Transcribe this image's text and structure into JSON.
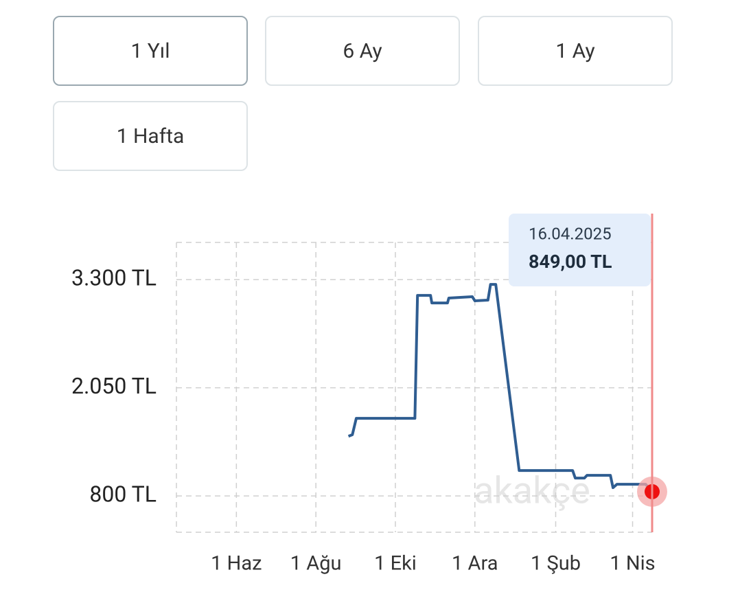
{
  "buttons": [
    {
      "label": "1 Yıl",
      "selected": true
    },
    {
      "label": "6 Ay",
      "selected": false
    },
    {
      "label": "1 Ay",
      "selected": false
    },
    {
      "label": "1 Hafta",
      "selected": false
    }
  ],
  "chart_data": {
    "type": "line",
    "x": [
      "2024-08-26",
      "2024-08-29",
      "2024-09-01",
      "2024-10-16",
      "2024-10-18",
      "2024-10-28",
      "2024-10-29",
      "2024-11-10",
      "2024-11-11",
      "2024-11-29",
      "2024-12-01",
      "2024-12-11",
      "2024-12-13",
      "2024-12-17",
      "2025-01-04",
      "2025-02-14",
      "2025-02-16",
      "2025-02-23",
      "2025-02-25",
      "2025-03-15",
      "2025-03-17",
      "2025-03-20",
      "2025-04-11",
      "2025-04-16"
    ],
    "series": [
      {
        "color": "#2f5d91",
        "values": [
          1490,
          1507,
          1697,
          1697,
          3118,
          3118,
          3031,
          3031,
          3087,
          3103,
          3055,
          3063,
          3245,
          3245,
          1094,
          1094,
          1006,
          1006,
          1038,
          1038,
          895,
          935,
          935,
          849
        ]
      }
    ],
    "xlim": [
      "2024-04-16",
      "2025-04-16"
    ],
    "xticks": [
      {
        "value": "2024-06-01",
        "label": "1 Haz"
      },
      {
        "value": "2024-08-01",
        "label": "1 Ağu"
      },
      {
        "value": "2024-10-01",
        "label": "1 Eki"
      },
      {
        "value": "2024-12-01",
        "label": "1 Ara"
      },
      {
        "value": "2025-02-01",
        "label": "1 Şub"
      },
      {
        "value": "2025-04-01",
        "label": "1 Nis"
      }
    ],
    "ylim": [
      380,
      3730
    ],
    "yticks": [
      {
        "value": 800,
        "label": "800 TL"
      },
      {
        "value": 2050,
        "label": "2.050 TL"
      },
      {
        "value": 3300,
        "label": "3.300 TL"
      }
    ],
    "grid": true,
    "tooltip": {
      "date": "16.04.2025",
      "value": "849,00 TL"
    },
    "watermark": "akakçe"
  }
}
